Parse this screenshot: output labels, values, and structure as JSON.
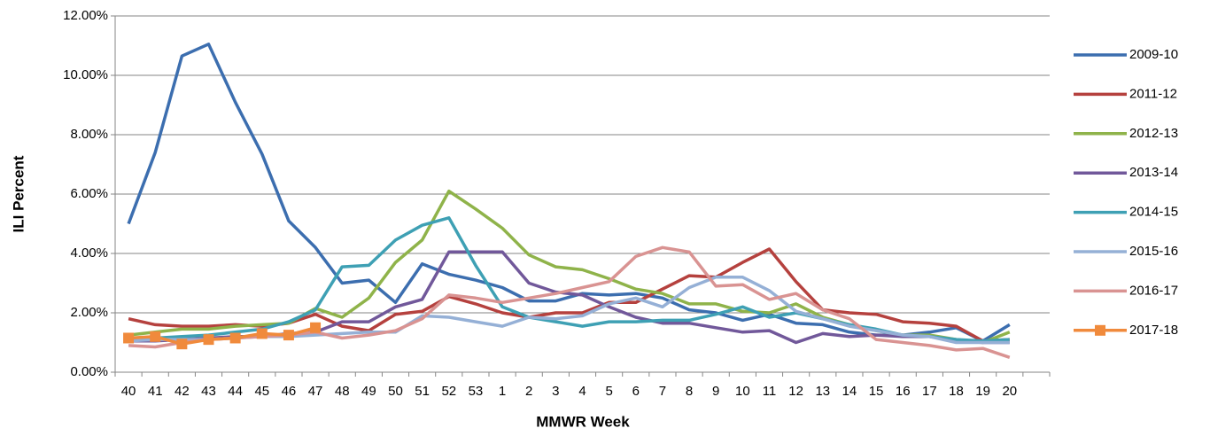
{
  "chart_data": {
    "type": "line",
    "x_label": "MMWR Week",
    "y_label": "ILI Percent",
    "categories": [
      "40",
      "41",
      "42",
      "43",
      "44",
      "45",
      "46",
      "47",
      "48",
      "49",
      "50",
      "51",
      "52",
      "53",
      "1",
      "2",
      "3",
      "4",
      "5",
      "6",
      "7",
      "8",
      "9",
      "10",
      "11",
      "12",
      "13",
      "14",
      "15",
      "16",
      "17",
      "18",
      "19",
      "20",
      null
    ],
    "ylim": [
      0,
      12
    ],
    "yticks": [
      {
        "value": 0,
        "label": "0.00%"
      },
      {
        "value": 2,
        "label": "2.00%"
      },
      {
        "value": 4,
        "label": "4.00%"
      },
      {
        "value": 6,
        "label": "6.00%"
      },
      {
        "value": 8,
        "label": "8.00%"
      },
      {
        "value": 10,
        "label": "10.00%"
      },
      {
        "value": 12,
        "label": "12.00%"
      }
    ],
    "grid": true,
    "legend": "right",
    "series": [
      {
        "name": "2009-10",
        "color": "#3c6eaf",
        "values": [
          5.0,
          7.4,
          10.65,
          11.05,
          9.1,
          7.35,
          5.1,
          4.2,
          3.0,
          3.1,
          2.35,
          3.65,
          3.3,
          3.1,
          2.85,
          2.4,
          2.4,
          2.65,
          2.6,
          2.65,
          2.5,
          2.1,
          2.0,
          1.75,
          1.95,
          1.65,
          1.6,
          1.35,
          1.25,
          1.25,
          1.35,
          1.5,
          1.05,
          1.6,
          null
        ]
      },
      {
        "name": "2011-12",
        "color": "#b5413e",
        "values": [
          1.8,
          1.6,
          1.55,
          1.55,
          1.6,
          1.55,
          1.65,
          1.95,
          1.55,
          1.4,
          1.95,
          2.05,
          2.55,
          2.3,
          2.0,
          1.85,
          2.0,
          2.0,
          2.35,
          2.35,
          2.8,
          3.25,
          3.2,
          3.7,
          4.15,
          3.05,
          2.1,
          2.0,
          1.95,
          1.7,
          1.65,
          1.55,
          1.05,
          1.1,
          null
        ]
      },
      {
        "name": "2012-13",
        "color": "#8fb34a",
        "values": [
          1.25,
          1.35,
          1.45,
          1.45,
          1.55,
          1.6,
          1.65,
          2.15,
          1.85,
          2.5,
          3.7,
          4.45,
          6.1,
          5.5,
          4.85,
          3.95,
          3.55,
          3.45,
          3.15,
          2.8,
          2.65,
          2.3,
          2.3,
          2.05,
          2.0,
          2.3,
          1.85,
          1.6,
          1.4,
          1.25,
          1.25,
          1.1,
          1.0,
          1.35,
          null
        ]
      },
      {
        "name": "2013-14",
        "color": "#71589a",
        "values": [
          1.05,
          1.05,
          1.1,
          1.15,
          1.2,
          1.2,
          1.3,
          1.35,
          1.7,
          1.7,
          2.2,
          2.45,
          4.05,
          4.05,
          4.05,
          3.0,
          2.7,
          2.6,
          2.2,
          1.85,
          1.65,
          1.65,
          1.5,
          1.35,
          1.4,
          1.0,
          1.3,
          1.2,
          1.25,
          1.2,
          1.2,
          1.05,
          1.0,
          1.0,
          null
        ]
      },
      {
        "name": "2014-15",
        "color": "#3ea0b4",
        "values": [
          1.1,
          1.15,
          1.2,
          1.25,
          1.35,
          1.45,
          1.7,
          2.1,
          3.55,
          3.6,
          4.45,
          4.95,
          5.2,
          3.6,
          2.2,
          1.85,
          1.7,
          1.55,
          1.7,
          1.7,
          1.75,
          1.75,
          1.95,
          2.2,
          1.85,
          2.0,
          1.8,
          1.6,
          1.45,
          1.25,
          1.2,
          1.1,
          1.05,
          1.1,
          null
        ]
      },
      {
        "name": "2015-16",
        "color": "#95b0d6",
        "values": [
          1.05,
          1.1,
          1.1,
          1.1,
          1.15,
          1.2,
          1.2,
          1.25,
          1.3,
          1.35,
          1.35,
          1.9,
          1.85,
          1.7,
          1.55,
          1.85,
          1.8,
          1.9,
          2.3,
          2.5,
          2.2,
          2.85,
          3.2,
          3.2,
          2.75,
          2.05,
          1.8,
          1.55,
          1.4,
          1.25,
          1.2,
          1.0,
          1.0,
          1.0,
          null
        ]
      },
      {
        "name": "2016-17",
        "color": "#d99392",
        "values": [
          0.9,
          0.85,
          1.0,
          1.1,
          1.15,
          1.2,
          1.25,
          1.35,
          1.15,
          1.25,
          1.4,
          1.8,
          2.6,
          2.5,
          2.35,
          2.5,
          2.65,
          2.85,
          3.05,
          3.9,
          4.2,
          4.05,
          2.9,
          2.95,
          2.45,
          2.65,
          2.1,
          1.8,
          1.1,
          1.0,
          0.9,
          0.75,
          0.8,
          0.5,
          null
        ]
      },
      {
        "name": "2017-18",
        "color": "#f08a3c",
        "marker": "square",
        "values": [
          1.15,
          1.2,
          0.95,
          1.1,
          1.15,
          1.3,
          1.25,
          1.5,
          null,
          null,
          null,
          null,
          null,
          null,
          null,
          null,
          null,
          null,
          null,
          null,
          null,
          null,
          null,
          null,
          null,
          null,
          null,
          null,
          null,
          null,
          null,
          null,
          null,
          null,
          null
        ]
      }
    ]
  }
}
